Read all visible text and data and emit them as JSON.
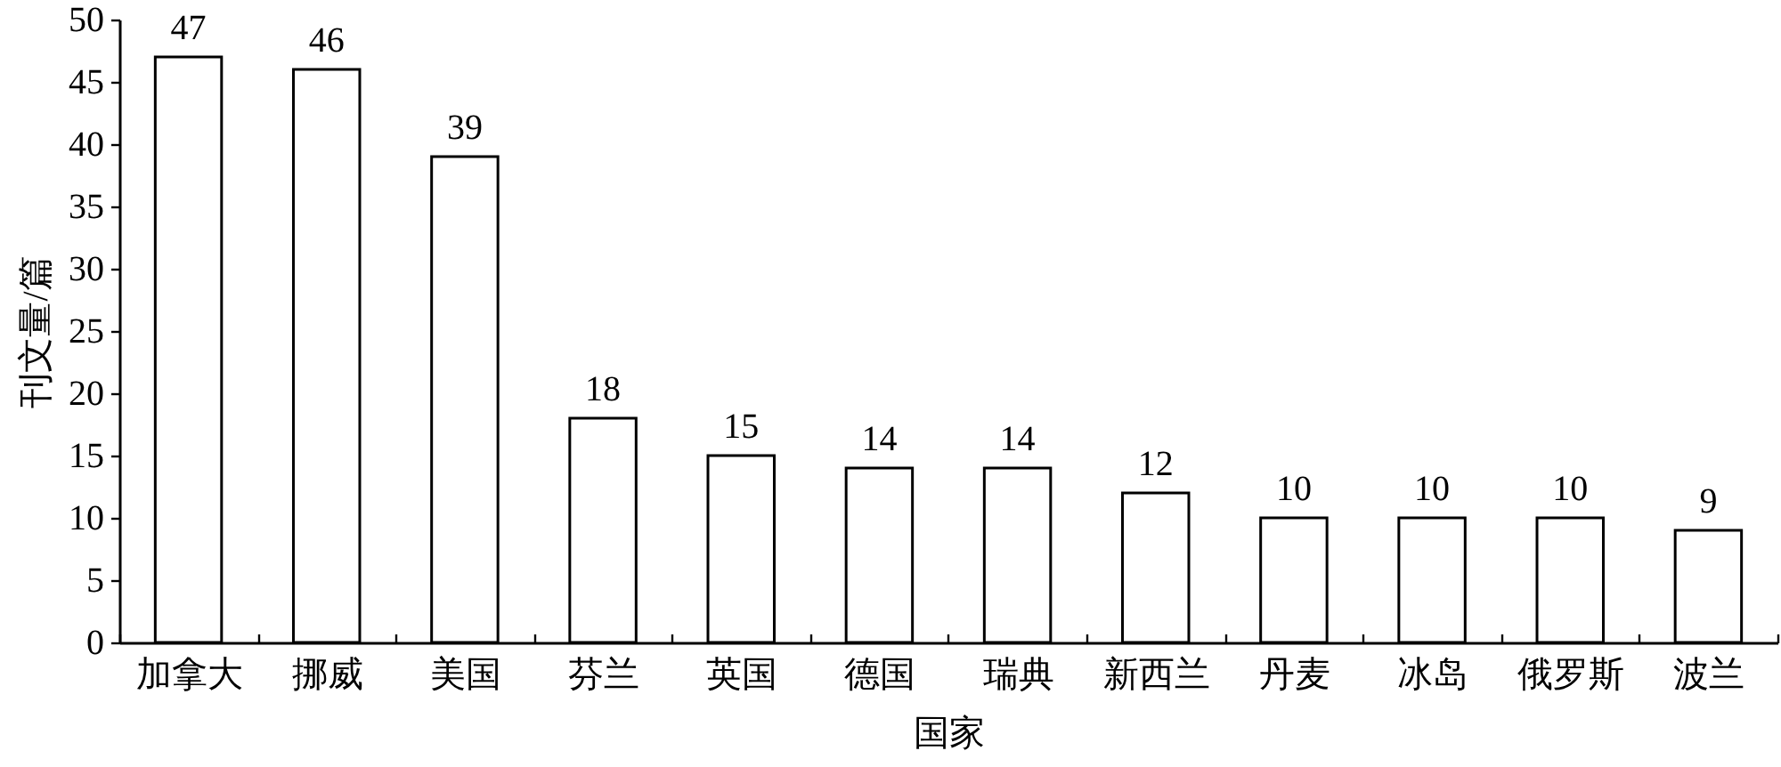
{
  "chart_data": {
    "type": "bar",
    "xlabel": "国家",
    "ylabel": "刊文量/篇",
    "categories": [
      "加拿大",
      "挪威",
      "美国",
      "芬兰",
      "英国",
      "德国",
      "瑞典",
      "新西兰",
      "丹麦",
      "冰岛",
      "俄罗斯",
      "波兰"
    ],
    "values": [
      47,
      46,
      39,
      18,
      15,
      14,
      14,
      12,
      10,
      10,
      10,
      9
    ],
    "color": "#ffffff",
    "ylim": [
      0,
      50
    ],
    "yticks": [
      0,
      5,
      10,
      15,
      20,
      25,
      30,
      35,
      40,
      45,
      50
    ],
    "data_labels": true
  }
}
